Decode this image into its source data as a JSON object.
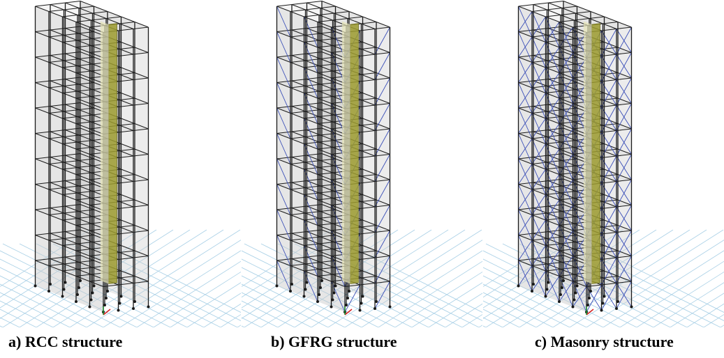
{
  "figures": [
    {
      "caption": "a) RCC structure",
      "bracing": "none"
    },
    {
      "caption": "b) GFRG structure",
      "bracing": "light"
    },
    {
      "caption": "c) Masonry structure",
      "bracing": "heavy"
    }
  ],
  "colors": {
    "frame": "#1a1a1a",
    "slab": "#c8c8c8",
    "core": "#9b9a2e",
    "bracing": "#3b4fb8",
    "ground_grid": "#a9d0e6"
  }
}
